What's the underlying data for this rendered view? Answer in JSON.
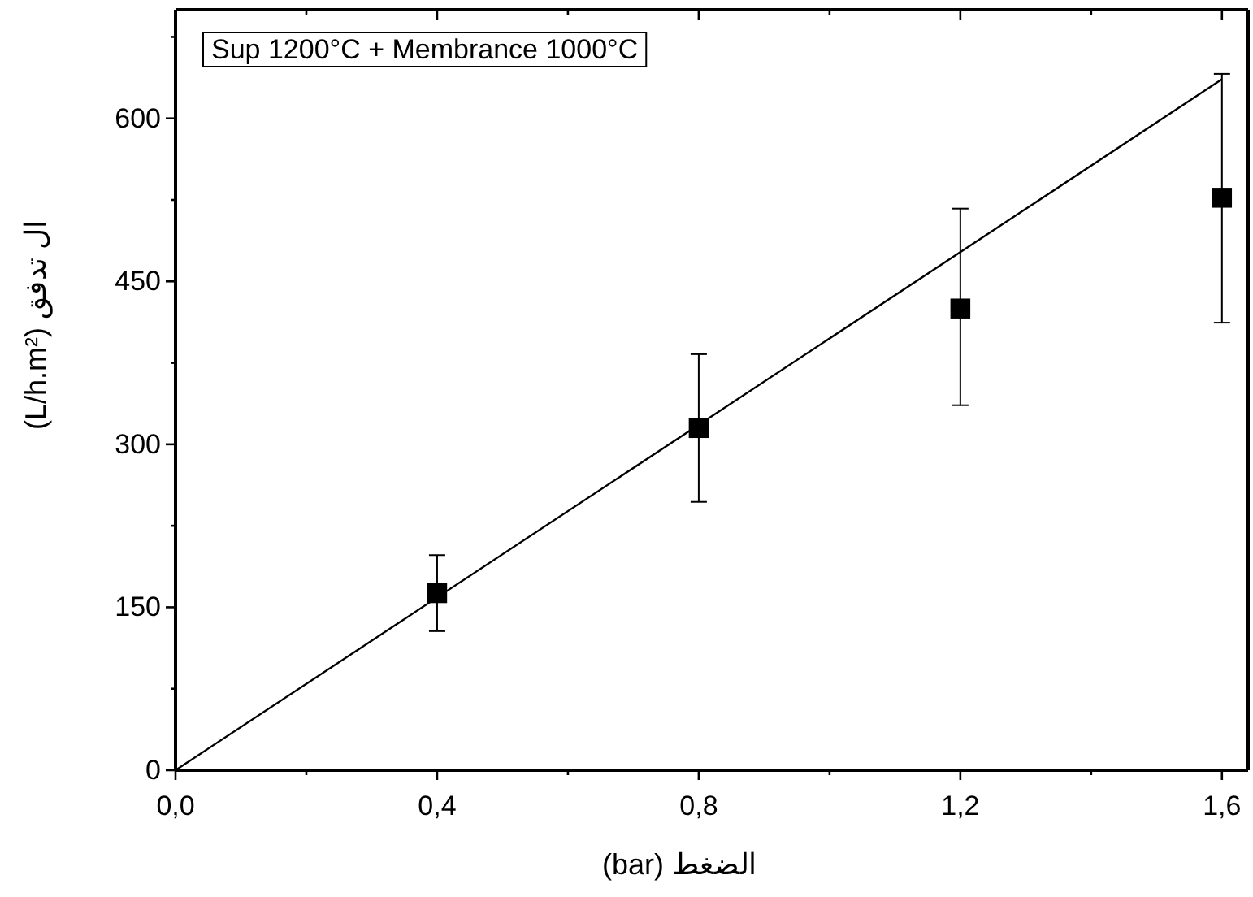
{
  "chart_data": {
    "type": "scatter",
    "xlabel": "(bar) الضغط",
    "ylabel": "(L/h.m²) ال تدفق",
    "annotations": [
      "Sup 1200°C + Membrance 1000°C"
    ],
    "x": [
      0.4,
      0.8,
      1.2,
      1.6
    ],
    "series": [
      {
        "color": "#000000",
        "marker": "square",
        "values": [
          163,
          315,
          425,
          527
        ],
        "errors": [
          [
            128,
            198
          ],
          [
            247,
            383
          ],
          [
            336,
            517
          ],
          [
            412,
            641
          ]
        ]
      },
      {
        "type": "line",
        "color": "#000000",
        "marker": "none",
        "line_style": "solid",
        "x": [
          0,
          1.6
        ],
        "values": [
          0,
          636
        ]
      }
    ],
    "xlim": [
      0,
      1.64
    ],
    "xticks": [
      {
        "value": 0,
        "label": "0,0"
      },
      {
        "value": 0.2,
        "label": null
      },
      {
        "value": 0.4,
        "label": "0,4"
      },
      {
        "value": 0.6,
        "label": null
      },
      {
        "value": 0.8,
        "label": "0,8"
      },
      {
        "value": 1.0,
        "label": null
      },
      {
        "value": 1.2,
        "label": "1,2"
      },
      {
        "value": 1.4,
        "label": null
      },
      {
        "value": 1.6,
        "label": "1,6"
      }
    ],
    "ylim": [
      0,
      700
    ],
    "yticks": [
      0,
      {
        "value": 75,
        "label": null
      },
      150,
      {
        "value": 225,
        "label": null
      },
      300,
      {
        "value": 375,
        "label": null
      },
      450,
      {
        "value": 525,
        "label": null
      },
      600,
      {
        "value": 675,
        "label": null
      }
    ],
    "grid": false
  }
}
